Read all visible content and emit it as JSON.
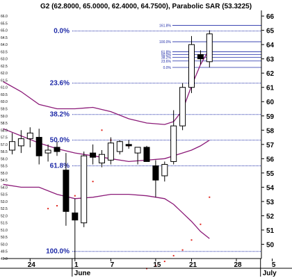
{
  "chart_data": {
    "type": "candlestick",
    "title": "G2 (62.8000, 65.0000, 62.4000, 64.7500), Parabolic SAR (53.3225)",
    "ylim": [
      49,
      66.2
    ],
    "y_ticks": [
      50,
      51,
      52,
      53,
      54,
      55,
      56,
      57,
      58,
      59,
      60,
      61,
      62,
      63,
      64,
      65,
      66
    ],
    "y_minor_ticks": [
      "48.5",
      "49.0",
      "49.5",
      "50.0",
      "50.5",
      "51.0",
      "51.5",
      "52.0",
      "52.5",
      "53.0",
      "53.5",
      "54.0",
      "54.5",
      "55.0",
      "55.5",
      "56.0",
      "56.5",
      "57.0",
      "57.5",
      "58.0",
      "58.5",
      "59.0",
      "59.5",
      "60.0",
      "60.5",
      "61.0",
      "61.5",
      "62.0",
      "62.5",
      "63.0",
      "63.5",
      "64.0",
      "64.5",
      "65.0",
      "65.5",
      "66.0"
    ],
    "x_ticks": [
      {
        "label": "24",
        "index": 2
      },
      {
        "label": "1",
        "index": 7
      },
      {
        "label": "7",
        "index": 11
      },
      {
        "label": "15",
        "index": 16
      },
      {
        "label": "21",
        "index": 20
      },
      {
        "label": "28",
        "index": 25
      },
      {
        "label": "5",
        "index": 29
      }
    ],
    "month_labels": [
      {
        "label": "June",
        "index": 7
      },
      {
        "label": "July",
        "index": 28
      }
    ],
    "candles": [
      {
        "open": 56.6,
        "high": 57.8,
        "low": 56.3,
        "close": 57.2
      },
      {
        "open": 56.9,
        "high": 58.0,
        "low": 56.4,
        "close": 57.4
      },
      {
        "open": 57.4,
        "high": 58.2,
        "low": 56.8,
        "close": 57.8
      },
      {
        "open": 57.5,
        "high": 58.1,
        "low": 55.6,
        "close": 56.2
      },
      {
        "open": 56.4,
        "high": 57.0,
        "low": 55.8,
        "close": 56.6
      },
      {
        "open": 56.8,
        "high": 57.2,
        "low": 56.2,
        "close": 56.5
      },
      {
        "open": 55.2,
        "high": 56.4,
        "low": 51.3,
        "close": 52.3
      },
      {
        "open": 52.2,
        "high": 53.2,
        "low": 49.0,
        "close": 51.7
      },
      {
        "open": 51.5,
        "high": 56.5,
        "low": 51.2,
        "close": 56.2
      },
      {
        "open": 56.4,
        "high": 57.0,
        "low": 55.6,
        "close": 56.1
      },
      {
        "open": 55.7,
        "high": 56.6,
        "low": 55.4,
        "close": 56.3
      },
      {
        "open": 55.9,
        "high": 57.5,
        "low": 55.6,
        "close": 57.1
      },
      {
        "open": 56.5,
        "high": 57.3,
        "low": 56.3,
        "close": 57.2
      },
      {
        "open": 57.0,
        "high": 57.3,
        "low": 56.7,
        "close": 56.9
      },
      {
        "open": 56.4,
        "high": 56.8,
        "low": 55.6,
        "close": 56.8
      },
      {
        "open": 56.8,
        "high": 56.9,
        "low": 55.8,
        "close": 55.8
      },
      {
        "open": 55.5,
        "high": 55.9,
        "low": 53.3,
        "close": 54.5
      },
      {
        "open": 54.8,
        "high": 55.8,
        "low": 54.4,
        "close": 55.6
      },
      {
        "open": 55.8,
        "high": 59.4,
        "low": 55.6,
        "close": 58.3
      },
      {
        "open": 58.3,
        "high": 61.3,
        "low": 58.0,
        "close": 61.0
      },
      {
        "open": 61.0,
        "high": 64.6,
        "low": 60.6,
        "close": 64.0
      },
      {
        "open": 63.3,
        "high": 63.6,
        "low": 62.6,
        "close": 63.0
      },
      {
        "open": 62.8,
        "high": 65.0,
        "low": 62.4,
        "close": 64.75
      }
    ],
    "parabolic_sar": [
      {
        "index": 4,
        "value": 52.5
      },
      {
        "index": 5,
        "value": 52.7
      },
      {
        "index": 6,
        "value": 53.0
      },
      {
        "index": 7,
        "value": 53.4
      },
      {
        "index": 8,
        "value": 53.9
      },
      {
        "index": 9,
        "value": 54.4
      },
      {
        "index": 10,
        "value": 58.0
      },
      {
        "index": 11,
        "value": 57.3
      },
      {
        "index": 12,
        "value": 57.0
      },
      {
        "index": 13,
        "value": 56.9
      },
      {
        "index": 14,
        "value": 56.6
      },
      {
        "index": 15,
        "value": 48.3
      },
      {
        "index": 16,
        "value": 48.5
      },
      {
        "index": 17,
        "value": 48.8
      },
      {
        "index": 18,
        "value": 49.2
      },
      {
        "index": 19,
        "value": 49.6
      },
      {
        "index": 20,
        "value": 50.3
      },
      {
        "index": 21,
        "value": 51.4
      },
      {
        "index": 22,
        "value": 53.3
      }
    ],
    "upper_band": [
      {
        "index": -1,
        "value": 61.4
      },
      {
        "index": 1,
        "value": 60.7
      },
      {
        "index": 3,
        "value": 59.8
      },
      {
        "index": 5,
        "value": 59.5
      },
      {
        "index": 7,
        "value": 59.5
      },
      {
        "index": 9,
        "value": 59.6
      },
      {
        "index": 11,
        "value": 59.3
      },
      {
        "index": 13,
        "value": 58.8
      },
      {
        "index": 15,
        "value": 58.5
      },
      {
        "index": 17,
        "value": 58.4
      },
      {
        "index": 18,
        "value": 58.6
      },
      {
        "index": 19,
        "value": 59.4
      },
      {
        "index": 20,
        "value": 61.1
      },
      {
        "index": 21,
        "value": 62.6
      },
      {
        "index": 22,
        "value": 63.7
      }
    ],
    "middle_band": [
      {
        "index": -1,
        "value": 58.1
      },
      {
        "index": 1,
        "value": 57.6
      },
      {
        "index": 3,
        "value": 57.1
      },
      {
        "index": 5,
        "value": 56.7
      },
      {
        "index": 7,
        "value": 56.4
      },
      {
        "index": 9,
        "value": 56.2
      },
      {
        "index": 11,
        "value": 56.0
      },
      {
        "index": 13,
        "value": 55.8
      },
      {
        "index": 15,
        "value": 55.9
      },
      {
        "index": 17,
        "value": 56.0
      },
      {
        "index": 18,
        "value": 56.2
      },
      {
        "index": 19,
        "value": 56.4
      },
      {
        "index": 20,
        "value": 56.6
      },
      {
        "index": 21,
        "value": 56.9
      },
      {
        "index": 22,
        "value": 57.3
      }
    ],
    "lower_band": [
      {
        "index": -1,
        "value": 54.2
      },
      {
        "index": 1,
        "value": 54.0
      },
      {
        "index": 3,
        "value": 54.0
      },
      {
        "index": 5,
        "value": 53.5
      },
      {
        "index": 7,
        "value": 53.2
      },
      {
        "index": 9,
        "value": 53.3
      },
      {
        "index": 11,
        "value": 53.5
      },
      {
        "index": 13,
        "value": 53.5
      },
      {
        "index": 15,
        "value": 53.4
      },
      {
        "index": 17,
        "value": 53.2
      },
      {
        "index": 18,
        "value": 52.8
      },
      {
        "index": 19,
        "value": 52.2
      },
      {
        "index": 20,
        "value": 51.6
      },
      {
        "index": 21,
        "value": 50.9
      },
      {
        "index": 22,
        "value": 50.4
      }
    ],
    "fib_main": [
      {
        "label": "0.0%",
        "value": 64.95
      },
      {
        "label": "23.6%",
        "value": 61.3
      },
      {
        "label": "38.2%",
        "value": 59.1
      },
      {
        "label": "50.0%",
        "value": 57.3
      },
      {
        "label": "61.8%",
        "value": 55.5
      },
      {
        "label": "100.0%",
        "value": 49.5
      }
    ],
    "fib_small": [
      {
        "label": "161.8%",
        "value": 65.35
      },
      {
        "label": "100.0%",
        "value": 64.2
      },
      {
        "label": "61.8%",
        "value": 63.5
      },
      {
        "label": "50.0%",
        "value": 63.3
      },
      {
        "label": "38.2%",
        "value": 63.1
      },
      {
        "label": "23.6%",
        "value": 62.85
      },
      {
        "label": "0.0%",
        "value": 62.4
      }
    ],
    "colors": {
      "axis": "#000000",
      "fib": "#1f2ba8",
      "band": "#8b1a78",
      "sar": "#e0241c",
      "bull_candle": "#ffffff",
      "bear_candle": "#000000"
    }
  }
}
